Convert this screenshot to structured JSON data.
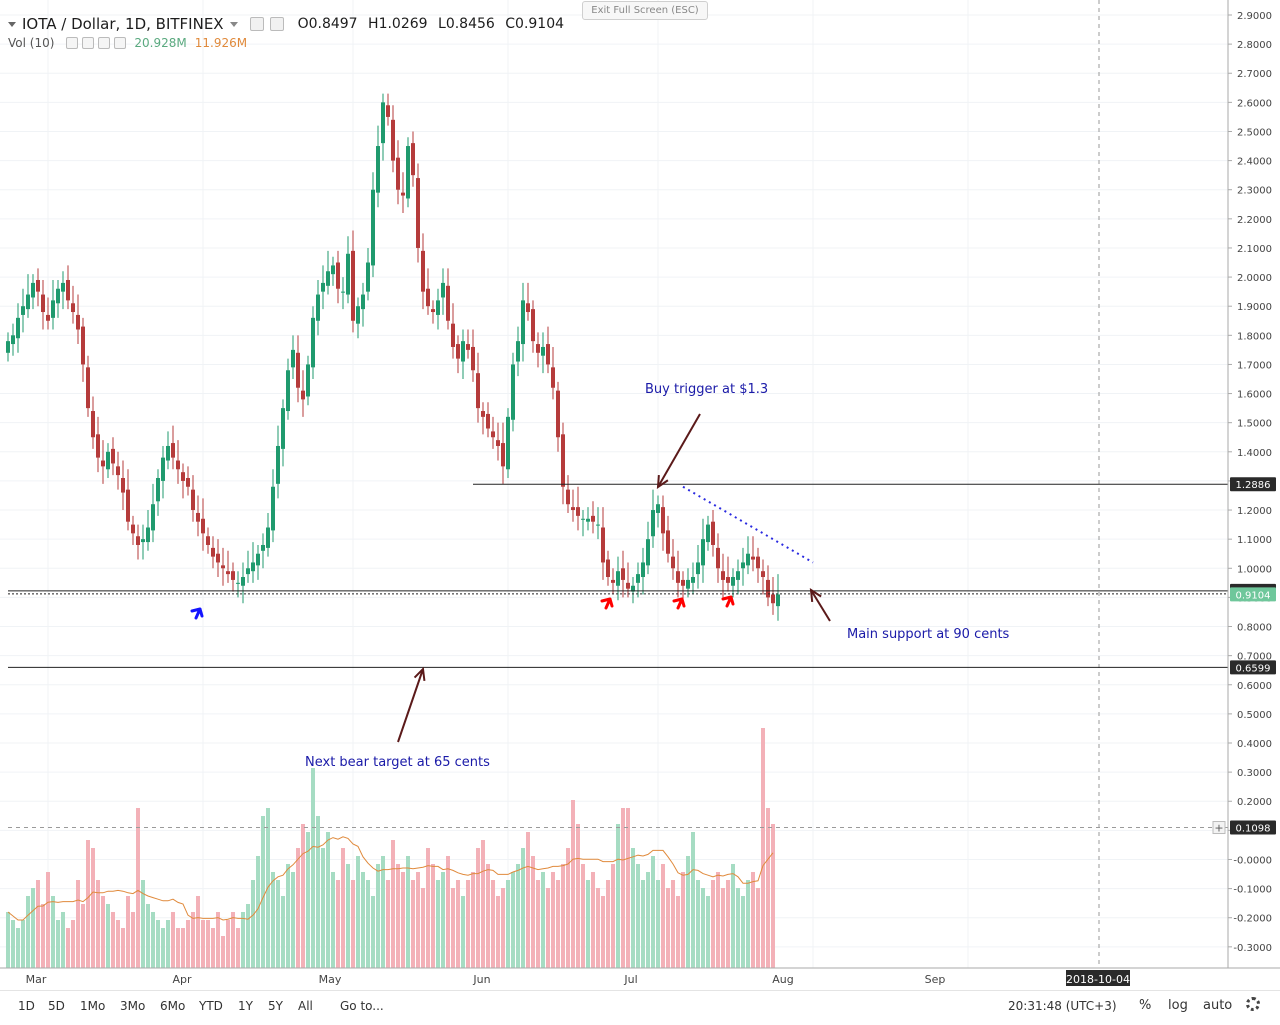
{
  "header": {
    "symbol": "IOTA / Dollar, 1D, BITFINEX",
    "open": "O0.8497",
    "high": "H1.0269",
    "low": "L0.8456",
    "close": "C0.9104",
    "exit_fullscreen": "Exit Full Screen (ESC)"
  },
  "volume_header": {
    "label": "Vol (10)",
    "value1": "20.928M",
    "value2": "11.926M"
  },
  "bottom_bar": {
    "ranges": [
      "1D",
      "5D",
      "1Mo",
      "3Mo",
      "6Mo",
      "YTD",
      "1Y",
      "5Y",
      "All"
    ],
    "goto": "Go to...",
    "clock": "20:31:48 (UTC+3)",
    "percent": "%",
    "log": "log",
    "auto": "auto"
  },
  "colors": {
    "up": "#1f9a6e",
    "down": "#b53b3b",
    "up_vol": "#a6dcc3",
    "down_vol": "#f3b1b8",
    "ma_line": "#e08a3c",
    "annotation_text": "#1a1aa8",
    "arrow_brown": "#5b1a1a",
    "arrow_red": "#ff0000",
    "arrow_blue": "#1414ff",
    "dotted_trend": "#2a2ae0"
  },
  "chart_data": {
    "type": "candlestick",
    "title": "IOTA / Dollar, 1D, BITFINEX",
    "y_axis_ticks": [
      "2.9000",
      "2.8000",
      "2.7000",
      "2.6000",
      "2.5000",
      "2.4000",
      "2.3000",
      "2.2000",
      "2.1000",
      "2.0000",
      "1.9000",
      "1.8000",
      "1.7000",
      "1.6000",
      "1.5000",
      "1.4000",
      "1.3000",
      "1.2000",
      "1.1000",
      "1.0000",
      "0.9000",
      "0.8000",
      "0.7000",
      "0.6000",
      "0.5000",
      "0.4000",
      "0.3000",
      "0.2000",
      "0.1000",
      "-0.0000",
      "-0.1000",
      "-0.2000",
      "-0.3000"
    ],
    "y_range": [
      -0.35,
      2.95
    ],
    "x_axis_labels": [
      "Mar",
      "Apr",
      "May",
      "Jun",
      "Jul",
      "Aug",
      "Sep",
      "2018-10-04"
    ],
    "price_labels": [
      {
        "value": 1.2886,
        "text": "1.2886",
        "style": "dark"
      },
      {
        "value": 0.9226,
        "text": "0.9226",
        "style": "dark"
      },
      {
        "value": 0.9104,
        "text": "0.9104",
        "style": "green"
      },
      {
        "value": 0.6599,
        "text": "0.6599",
        "style": "dark"
      },
      {
        "value": 0.1098,
        "text": "0.1098",
        "style": "dark"
      }
    ],
    "closes": [
      1.78,
      1.8,
      1.86,
      1.9,
      1.94,
      1.98,
      1.95,
      1.88,
      1.85,
      1.92,
      1.96,
      1.98,
      1.92,
      1.88,
      1.82,
      1.7,
      1.55,
      1.45,
      1.38,
      1.35,
      1.4,
      1.36,
      1.32,
      1.26,
      1.16,
      1.12,
      1.08,
      1.1,
      1.14,
      1.22,
      1.31,
      1.38,
      1.42,
      1.38,
      1.34,
      1.3,
      1.28,
      1.2,
      1.16,
      1.12,
      1.08,
      1.04,
      1.02,
      1.0,
      0.98,
      0.96,
      0.95,
      0.97,
      1.0,
      1.02,
      1.05,
      1.08,
      1.14,
      1.28,
      1.42,
      1.55,
      1.68,
      1.75,
      1.62,
      1.58,
      1.7,
      1.86,
      1.94,
      1.98,
      2.02,
      2.04,
      1.96,
      1.95,
      2.08,
      1.85,
      1.9,
      1.94,
      2.05,
      2.3,
      2.45,
      2.6,
      2.55,
      2.4,
      2.3,
      2.28,
      2.45,
      2.35,
      2.1,
      1.95,
      1.9,
      1.88,
      1.92,
      1.98,
      1.85,
      1.76,
      1.72,
      1.78,
      1.75,
      1.68,
      1.55,
      1.52,
      1.48,
      1.45,
      1.42,
      1.35,
      1.52,
      1.7,
      1.78,
      1.92,
      1.88,
      1.78,
      1.74,
      1.76,
      1.7,
      1.62,
      1.45,
      1.28,
      1.22,
      1.2,
      1.18,
      1.17,
      1.17,
      1.16,
      1.15,
      1.02,
      0.97,
      0.95,
      0.99,
      0.96,
      0.93,
      0.94,
      0.98,
      1.02,
      1.1,
      1.2,
      1.22,
      1.12,
      1.05,
      1.0,
      0.95,
      0.94,
      0.96,
      0.97,
      1.02,
      1.1,
      1.15,
      1.08,
      1.0,
      0.96,
      0.95,
      0.97,
      0.99,
      1.02,
      1.05,
      1.03,
      1.0,
      0.97,
      0.9,
      0.88,
      0.91
    ],
    "volume_ma_len": 10,
    "volumes_relative": [
      0.35,
      0.3,
      0.25,
      0.3,
      0.45,
      0.5,
      0.55,
      0.4,
      0.6,
      0.45,
      0.3,
      0.35,
      0.25,
      0.3,
      0.55,
      0.4,
      0.8,
      0.75,
      0.55,
      0.45,
      0.4,
      0.35,
      0.3,
      0.25,
      0.45,
      0.35,
      1.0,
      0.55,
      0.4,
      0.35,
      0.3,
      0.25,
      0.3,
      0.35,
      0.25,
      0.25,
      0.3,
      0.35,
      0.45,
      0.3,
      0.3,
      0.25,
      0.35,
      0.2,
      0.3,
      0.35,
      0.25,
      0.35,
      0.4,
      0.55,
      0.7,
      0.95,
      1.0,
      0.6,
      0.55,
      0.45,
      0.65,
      0.6,
      0.75,
      0.9,
      0.85,
      1.25,
      0.95,
      0.75,
      0.85,
      0.6,
      0.55,
      0.75,
      0.65,
      0.55,
      0.7,
      0.6,
      0.55,
      0.45,
      0.65,
      0.7,
      0.55,
      0.8,
      0.65,
      0.6,
      0.7,
      0.55,
      0.6,
      0.5,
      0.75,
      0.65,
      0.55,
      0.6,
      0.7,
      0.5,
      0.55,
      0.45,
      0.55,
      0.6,
      0.75,
      0.8,
      0.65,
      0.55,
      0.45,
      0.5,
      0.55,
      0.6,
      0.65,
      0.75,
      0.85,
      0.7,
      0.55,
      0.6,
      0.5,
      0.6,
      0.55,
      0.65,
      0.75,
      1.05,
      0.9,
      0.65,
      0.55,
      0.6,
      0.5,
      0.45,
      0.55,
      0.65,
      0.9,
      1.0,
      1.0,
      0.75,
      0.65,
      0.55,
      0.6,
      0.7,
      0.55,
      0.65,
      0.5,
      0.55,
      0.45,
      0.6,
      0.7,
      0.85,
      0.55,
      0.5,
      0.45,
      0.55,
      0.6,
      0.5,
      0.55,
      0.65,
      0.5,
      0.45,
      0.55,
      0.6,
      0.5,
      1.5,
      1.0,
      0.9
    ],
    "horizontal_levels": [
      {
        "value": 1.2886,
        "from_date": "2018-05-25"
      },
      {
        "value": 0.9226,
        "from_date": "2018-02-21"
      },
      {
        "value": 0.912,
        "from_date": "2018-02-21"
      },
      {
        "value": 0.6599,
        "from_date": "2018-02-21"
      },
      {
        "value": 0.1098,
        "from_date": "2018-02-21",
        "dashed": true
      }
    ],
    "trendline_dotted": {
      "from": [
        "2018-07-06",
        1.28
      ],
      "to": [
        "2018-08-01",
        1.02
      ]
    },
    "annotations": [
      {
        "text": "Buy trigger at $1.3"
      },
      {
        "text": "Main support at 90 cents"
      },
      {
        "text": "Next bear target at 65 cents"
      }
    ]
  }
}
